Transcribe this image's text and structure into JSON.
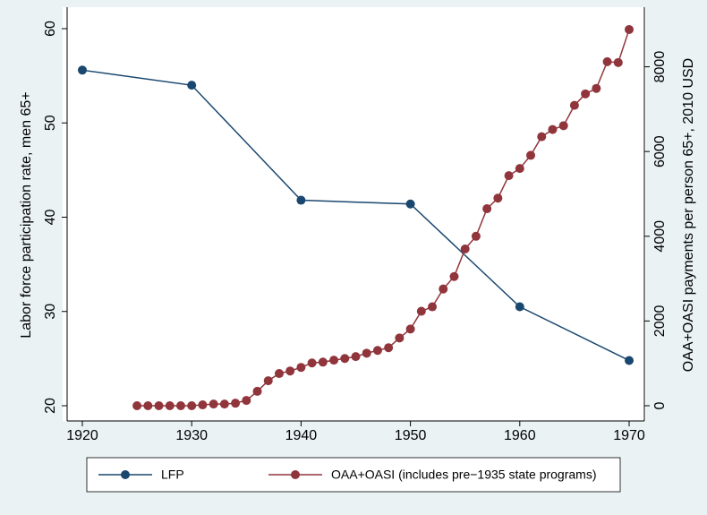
{
  "chart_data": {
    "type": "line",
    "ylabel": "Labor force participation rate, men 65+",
    "y2label": "OAA+OASI payments per person 65+, 2010 USD",
    "xlim": [
      1920,
      1970
    ],
    "xticks": [
      1920,
      1930,
      1940,
      1950,
      1960,
      1970
    ],
    "ylim": [
      20,
      60
    ],
    "yticks": [
      20,
      30,
      40,
      50,
      60
    ],
    "y2lim": [
      0,
      8900
    ],
    "y2ticks": [
      0,
      2000,
      4000,
      6000,
      8000
    ],
    "legend": "bottom",
    "series": [
      {
        "name": "LFP",
        "color": "#1a476f",
        "axis": "y",
        "x": [
          1920,
          1930,
          1940,
          1950,
          1960,
          1970
        ],
        "values": [
          55.6,
          54.0,
          41.8,
          41.4,
          30.5,
          24.8
        ]
      },
      {
        "name": "OAA+OASI (includes pre−1935 state programs)",
        "color": "#90353b",
        "axis": "y2",
        "x": [
          1925,
          1926,
          1927,
          1928,
          1929,
          1930,
          1931,
          1932,
          1933,
          1934,
          1935,
          1936,
          1937,
          1938,
          1939,
          1940,
          1941,
          1942,
          1943,
          1944,
          1945,
          1946,
          1947,
          1948,
          1949,
          1950,
          1951,
          1952,
          1953,
          1954,
          1955,
          1956,
          1957,
          1958,
          1959,
          1960,
          1961,
          1962,
          1963,
          1964,
          1965,
          1966,
          1967,
          1968,
          1969,
          1970
        ],
        "values": [
          0,
          0,
          0,
          0,
          0,
          0,
          20,
          40,
          40,
          60,
          125,
          340,
          590,
          760,
          820,
          905,
          1010,
          1030,
          1075,
          1115,
          1160,
          1240,
          1305,
          1370,
          1600,
          1810,
          2230,
          2335,
          2755,
          3050,
          3700,
          4000,
          4650,
          4900,
          5430,
          5600,
          5910,
          6350,
          6520,
          6610,
          7090,
          7360,
          7490,
          8120,
          8100,
          8880
        ]
      }
    ]
  }
}
